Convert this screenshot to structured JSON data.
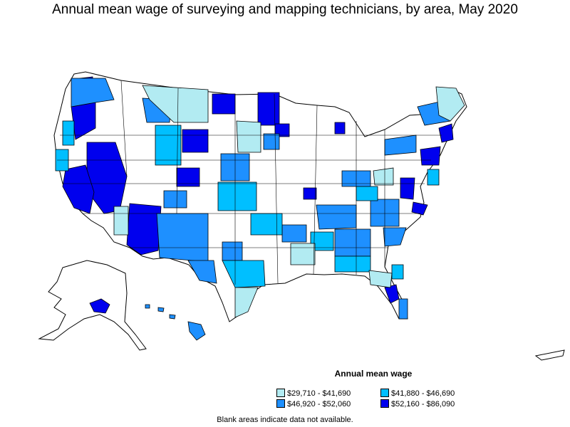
{
  "title": "Annual mean wage of surveying and mapping technicians, by area, May 2020",
  "legend": {
    "title": "Annual mean wage",
    "items": [
      {
        "label": "$29,710 - $41,690",
        "color": "#b2ebf2"
      },
      {
        "label": "$41,880 - $46,690",
        "color": "#00bfff"
      },
      {
        "label": "$46,920 - $52,060",
        "color": "#1e90ff"
      },
      {
        "label": "$52,160 - $86,090",
        "color": "#0000ee"
      }
    ]
  },
  "footnote": "Blank areas indicate data not available.",
  "colors": {
    "blank": "#ffffff",
    "outline": "#000000"
  }
}
